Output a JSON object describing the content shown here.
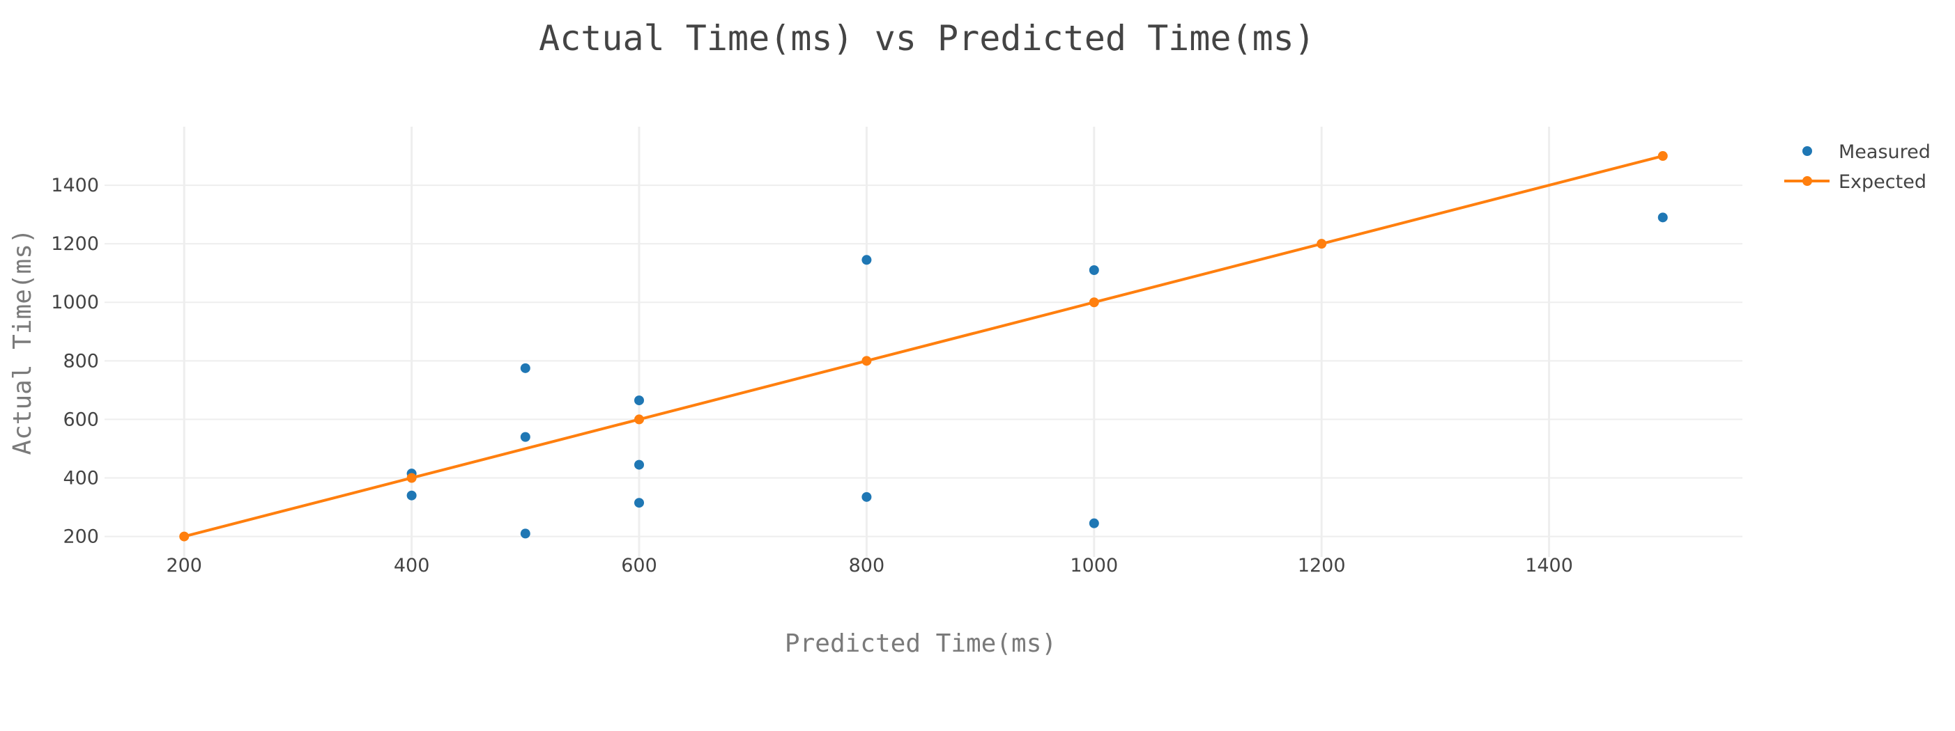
{
  "chart_data": {
    "type": "scatter",
    "title": "Actual Time(ms) vs Predicted Time(ms)",
    "xlabel": "Predicted Time(ms)",
    "ylabel": "Actual Time(ms)",
    "xlim": [
      130,
      1570
    ],
    "ylim": [
      130,
      1600
    ],
    "x_ticks": [
      200,
      400,
      600,
      800,
      1000,
      1200,
      1400
    ],
    "y_ticks": [
      200,
      400,
      600,
      800,
      1000,
      1200,
      1400
    ],
    "grid": true,
    "legend_position": "top-right",
    "series": [
      {
        "name": "Measured",
        "mode": "markers",
        "color": "#1f77b4",
        "x": [
          400,
          400,
          500,
          500,
          500,
          600,
          600,
          600,
          800,
          800,
          1000,
          1000,
          1500
        ],
        "y": [
          415,
          340,
          775,
          540,
          210,
          665,
          445,
          315,
          1145,
          335,
          1110,
          245,
          1290
        ]
      },
      {
        "name": "Expected",
        "mode": "lines+markers",
        "color": "#ff7f0e",
        "x": [
          200,
          400,
          600,
          800,
          1000,
          1200,
          1500
        ],
        "y": [
          200,
          400,
          600,
          800,
          1000,
          1200,
          1500
        ]
      }
    ]
  }
}
